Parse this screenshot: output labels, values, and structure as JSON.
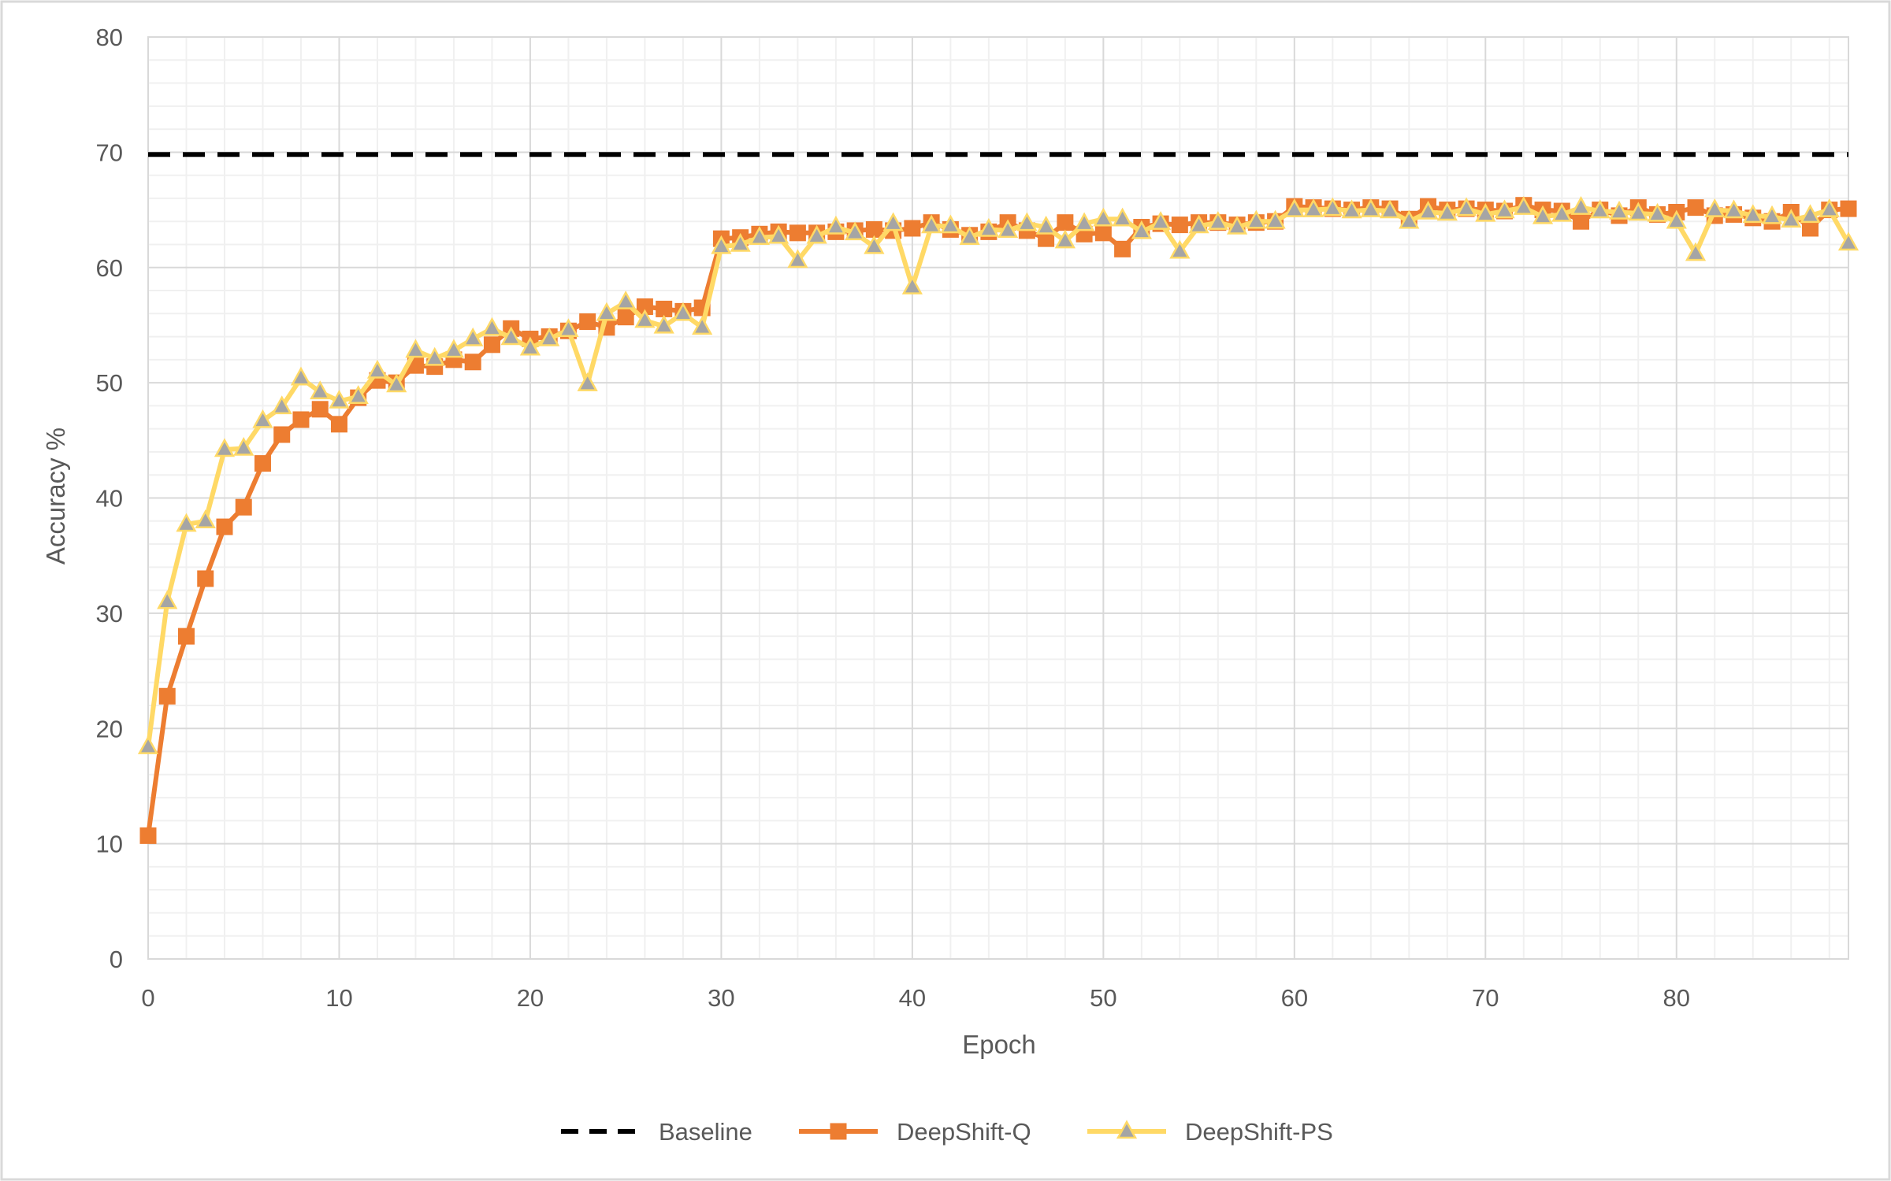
{
  "chart_data": {
    "type": "line",
    "title": "",
    "xlabel": "Epoch",
    "ylabel": "Accuracy %",
    "xlim": [
      0,
      89
    ],
    "ylim": [
      0,
      80
    ],
    "x_ticks": [
      0,
      10,
      20,
      30,
      40,
      50,
      60,
      70,
      80
    ],
    "y_ticks": [
      0,
      10,
      20,
      30,
      40,
      50,
      60,
      70,
      80
    ],
    "x_tick_labels": [
      "0",
      "10",
      "20",
      "30",
      "40",
      "50",
      "60",
      "70",
      "80"
    ],
    "y_tick_labels": [
      "0",
      "10",
      "20",
      "30",
      "40",
      "50",
      "60",
      "70",
      "80"
    ],
    "grid": true,
    "legend_position": "bottom",
    "series": [
      {
        "name": "Baseline",
        "style": "dashed",
        "color": "#000000",
        "marker": "none",
        "x": [
          0,
          89
        ],
        "values": [
          69.8,
          69.8
        ]
      },
      {
        "name": "DeepShift-Q",
        "style": "solid",
        "color": "#ED7D31",
        "marker": "square",
        "x": [
          0,
          1,
          2,
          3,
          4,
          5,
          6,
          7,
          8,
          9,
          10,
          11,
          12,
          13,
          14,
          15,
          16,
          17,
          18,
          19,
          20,
          21,
          22,
          23,
          24,
          25,
          26,
          27,
          28,
          29,
          30,
          31,
          32,
          33,
          34,
          35,
          36,
          37,
          38,
          39,
          40,
          41,
          42,
          43,
          44,
          45,
          46,
          47,
          48,
          49,
          50,
          51,
          52,
          53,
          54,
          55,
          56,
          57,
          58,
          59,
          60,
          61,
          62,
          63,
          64,
          65,
          66,
          67,
          68,
          69,
          70,
          71,
          72,
          73,
          74,
          75,
          76,
          77,
          78,
          79,
          80,
          81,
          82,
          83,
          84,
          85,
          86,
          87,
          88,
          89
        ],
        "values": [
          10.7,
          22.8,
          28.0,
          33.0,
          37.5,
          39.2,
          43.0,
          45.5,
          46.8,
          47.7,
          46.4,
          48.7,
          50.2,
          50.0,
          51.5,
          51.4,
          52.0,
          51.8,
          53.3,
          54.7,
          53.8,
          54.0,
          54.5,
          55.3,
          54.8,
          55.7,
          56.6,
          56.4,
          56.2,
          56.5,
          62.5,
          62.6,
          62.9,
          63.1,
          63.0,
          63.0,
          63.1,
          63.2,
          63.3,
          63.2,
          63.4,
          63.9,
          63.3,
          62.8,
          63.1,
          63.9,
          63.2,
          62.5,
          63.9,
          62.9,
          63.0,
          61.6,
          63.5,
          63.8,
          63.7,
          63.9,
          63.9,
          63.7,
          63.9,
          64.0,
          65.3,
          65.2,
          65.1,
          65.0,
          65.2,
          65.1,
          64.2,
          65.3,
          65.0,
          65.1,
          65.0,
          64.9,
          65.4,
          65.0,
          64.9,
          64.0,
          65.0,
          64.5,
          65.2,
          64.6,
          64.8,
          65.2,
          64.5,
          64.6,
          64.3,
          64.0,
          64.8,
          63.4,
          65.0,
          65.1
        ]
      },
      {
        "name": "DeepShift-PS",
        "style": "solid",
        "color": "#FFD966",
        "marker": "triangle",
        "x": [
          0,
          1,
          2,
          3,
          4,
          5,
          6,
          7,
          8,
          9,
          10,
          11,
          12,
          13,
          14,
          15,
          16,
          17,
          18,
          19,
          20,
          21,
          22,
          23,
          24,
          25,
          26,
          27,
          28,
          29,
          30,
          31,
          32,
          33,
          34,
          35,
          36,
          37,
          38,
          39,
          40,
          41,
          42,
          43,
          44,
          45,
          46,
          47,
          48,
          49,
          50,
          51,
          52,
          53,
          54,
          55,
          56,
          57,
          58,
          59,
          60,
          61,
          62,
          63,
          64,
          65,
          66,
          67,
          68,
          69,
          70,
          71,
          72,
          73,
          74,
          75,
          76,
          77,
          78,
          79,
          80,
          81,
          82,
          83,
          84,
          85,
          86,
          87,
          88,
          89
        ],
        "values": [
          18.4,
          31.0,
          37.7,
          38.0,
          44.2,
          44.3,
          46.7,
          47.9,
          50.4,
          49.2,
          48.4,
          48.8,
          51.0,
          49.8,
          52.8,
          52.1,
          52.8,
          53.8,
          54.7,
          53.9,
          53.0,
          53.8,
          54.6,
          49.9,
          56.0,
          57.0,
          55.4,
          54.9,
          56.0,
          54.8,
          61.8,
          62.0,
          62.6,
          62.7,
          60.6,
          62.7,
          63.5,
          63.0,
          61.8,
          63.8,
          58.3,
          63.6,
          63.6,
          62.6,
          63.3,
          63.2,
          63.8,
          63.5,
          62.3,
          63.8,
          64.2,
          64.2,
          63.1,
          63.9,
          61.4,
          63.6,
          63.9,
          63.5,
          64.0,
          64.0,
          65.0,
          65.0,
          65.1,
          64.9,
          65.0,
          64.9,
          64.0,
          64.8,
          64.7,
          65.1,
          64.6,
          64.9,
          65.2,
          64.4,
          64.6,
          65.2,
          64.9,
          64.8,
          64.7,
          64.6,
          64.0,
          61.2,
          65.0,
          64.9,
          64.5,
          64.4,
          64.1,
          64.5,
          65.0,
          62.1
        ]
      }
    ]
  }
}
